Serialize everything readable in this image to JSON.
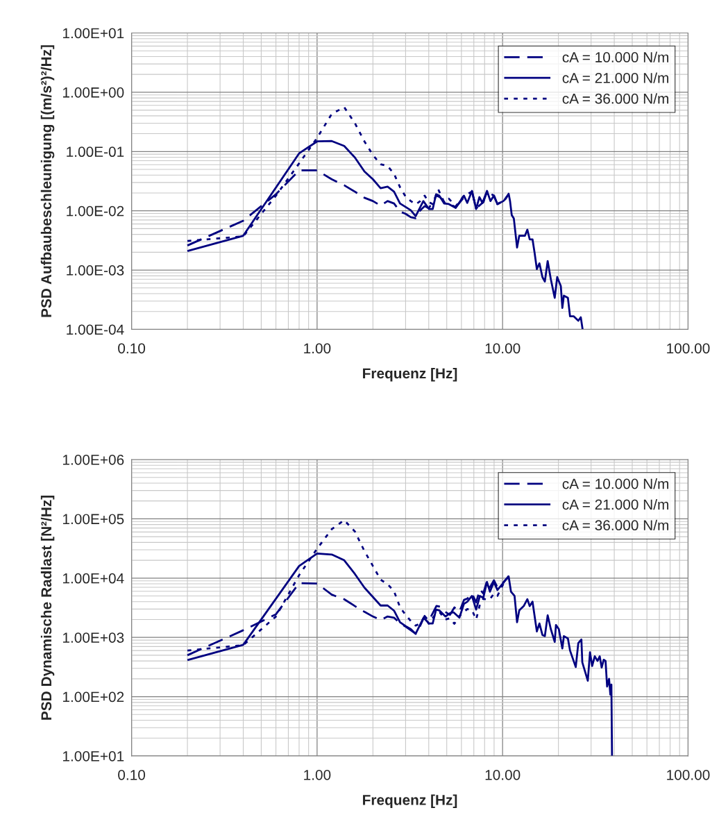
{
  "chart_data": [
    {
      "type": "line",
      "xlabel": "Frequenz [Hz]",
      "ylabel": "PSD Aufbaubeschleunigung [(m/s²)²/Hz]",
      "log": "xy",
      "grid": true,
      "legend": "top right",
      "xlim": [
        0.1,
        100
      ],
      "xticks": [
        {
          "value": 0.1,
          "label": "0.10"
        },
        {
          "value": 1,
          "label": "1.00"
        },
        {
          "value": 10,
          "label": "10.00"
        },
        {
          "value": 100,
          "label": "100.00"
        }
      ],
      "ylim": [
        0.0001,
        10
      ],
      "yticks": [
        {
          "value": 0.0001,
          "label": "1.00E-04"
        },
        {
          "value": 0.001,
          "label": "1.00E-03"
        },
        {
          "value": 0.01,
          "label": "1.00E-02"
        },
        {
          "value": 0.1,
          "label": "1.00E-01"
        },
        {
          "value": 1,
          "label": "1.00E+00"
        },
        {
          "value": 10,
          "label": "1.00E+01"
        }
      ],
      "series": [
        {
          "name": "cA = 10.000 N/m",
          "color": "#000080",
          "line_style": "dashed",
          "x": [
            0.2,
            0.4,
            0.6,
            0.8,
            1.0,
            1.2,
            1.4,
            1.6,
            1.8,
            2.0,
            2.2,
            2.4,
            2.6,
            2.8,
            3.0,
            3.2,
            3.4,
            3.6,
            3.8,
            4.0,
            4.4,
            4.6,
            4.9,
            5.2,
            5.6,
            6.2,
            6.84,
            7.2,
            7.87,
            8.24,
            8.98,
            9.38,
            10.1,
            10.78
          ],
          "values": [
            0.0026,
            0.0068,
            0.019,
            0.048,
            0.048,
            0.034,
            0.027,
            0.021,
            0.0166,
            0.0146,
            0.0122,
            0.0146,
            0.0133,
            0.0097,
            0.0089,
            0.0078,
            0.0075,
            0.0102,
            0.012,
            0.011,
            0.018,
            0.017,
            0.0135,
            0.013,
            0.0115,
            0.017,
            0.021,
            0.011,
            0.014,
            0.021,
            0.018,
            0.013,
            0.0146,
            0.019
          ]
        },
        {
          "name": "cA = 21.000 N/m",
          "color": "#000080",
          "line_style": "solid",
          "x": [
            0.2,
            0.4,
            0.8,
            1.0,
            1.2,
            1.4,
            1.6,
            1.8,
            2.0,
            2.2,
            2.4,
            2.6,
            2.8,
            3.0,
            3.2,
            3.4,
            3.74,
            4.01,
            4.2,
            4.38,
            4.56,
            4.84,
            5.13,
            5.59,
            6.19,
            6.45,
            6.84,
            7.2,
            7.5,
            7.79,
            8.24,
            8.6,
            8.98,
            9.38,
            10.1,
            10.4,
            10.78,
            10.97,
            11.2,
            11.5,
            11.97,
            12.3,
            13.2,
            13.6,
            14.0,
            14.5,
            14.9,
            15.3,
            15.8,
            16.4,
            16.9,
            17.5,
            18.2,
            19.1,
            19.7,
            20.6,
            21.0,
            21.4,
            22.5,
            23.1,
            24.2,
            25.6,
            26.4,
            27.0
          ],
          "values": [
            0.0021,
            0.0038,
            0.093,
            0.148,
            0.15,
            0.124,
            0.079,
            0.046,
            0.034,
            0.024,
            0.0255,
            0.021,
            0.0133,
            0.0116,
            0.0102,
            0.0081,
            0.0146,
            0.0107,
            0.0107,
            0.019,
            0.018,
            0.0133,
            0.013,
            0.0112,
            0.018,
            0.0136,
            0.0217,
            0.0107,
            0.017,
            0.0136,
            0.0217,
            0.0146,
            0.018,
            0.013,
            0.0146,
            0.016,
            0.0194,
            0.0146,
            0.0085,
            0.0074,
            0.0024,
            0.0038,
            0.0038,
            0.0048,
            0.0033,
            0.0033,
            0.0019,
            0.00104,
            0.0013,
            0.00076,
            0.00064,
            0.00142,
            0.0007,
            0.00034,
            0.00076,
            0.00054,
            0.00023,
            0.00037,
            0.00034,
            0.000166,
            0.000166,
            0.00014,
            0.00016,
            0.0001
          ]
        },
        {
          "name": "cA = 36.000 N/m",
          "color": "#000080",
          "line_style": "dotted",
          "x": [
            0.2,
            0.4,
            0.6,
            0.8,
            1.0,
            1.2,
            1.4,
            1.6,
            1.8,
            2.0,
            2.2,
            2.4,
            2.6,
            2.8,
            3.0,
            3.2,
            3.4,
            3.6,
            3.8,
            4.0,
            4.2,
            4.5,
            4.84,
            5.13,
            5.6,
            6.19,
            6.84,
            7.2,
            7.87,
            8.24,
            8.98,
            9.38,
            10.1,
            10.78
          ],
          "values": [
            0.0031,
            0.0037,
            0.018,
            0.063,
            0.17,
            0.43,
            0.56,
            0.3,
            0.148,
            0.087,
            0.061,
            0.057,
            0.042,
            0.025,
            0.0174,
            0.0146,
            0.0128,
            0.0146,
            0.018,
            0.014,
            0.013,
            0.023,
            0.014,
            0.016,
            0.012,
            0.018,
            0.021,
            0.011,
            0.014,
            0.021,
            0.018,
            0.013,
            0.0146,
            0.019
          ]
        }
      ]
    },
    {
      "type": "line",
      "xlabel": "Frequenz [Hz]",
      "ylabel": "PSD Dynamische Radlast [N²/Hz]",
      "log": "xy",
      "grid": true,
      "legend": "top right",
      "xlim": [
        0.1,
        100
      ],
      "xticks": [
        {
          "value": 0.1,
          "label": "0.10"
        },
        {
          "value": 1,
          "label": "1.00"
        },
        {
          "value": 10,
          "label": "10.00"
        },
        {
          "value": 100,
          "label": "100.00"
        }
      ],
      "ylim": [
        10,
        1000000
      ],
      "yticks": [
        {
          "value": 10,
          "label": "1.00E+01"
        },
        {
          "value": 100,
          "label": "1.00E+02"
        },
        {
          "value": 1000,
          "label": "1.00E+03"
        },
        {
          "value": 10000,
          "label": "1.00E+04"
        },
        {
          "value": 100000,
          "label": "1.00E+05"
        },
        {
          "value": 1000000,
          "label": "1.00E+06"
        }
      ],
      "series": [
        {
          "name": "cA = 10.000 N/m",
          "color": "#000080",
          "line_style": "dashed",
          "x": [
            0.2,
            0.4,
            0.6,
            0.8,
            1.0,
            1.2,
            1.4,
            1.6,
            1.8,
            2.0,
            2.2,
            2.4,
            2.6,
            2.8,
            3.0,
            3.2,
            3.4,
            3.6,
            3.8,
            4.0,
            4.4,
            4.6,
            4.9,
            5.2,
            5.5,
            5.85,
            6.2,
            6.45,
            6.84,
            7.2,
            7.55,
            7.87,
            8.24,
            8.55,
            8.98,
            9.38,
            10.1,
            10.78
          ],
          "values": [
            500,
            1320,
            2450,
            8200,
            8100,
            5260,
            4400,
            3370,
            2700,
            2250,
            1960,
            2250,
            2150,
            1730,
            1520,
            1320,
            1150,
            1580,
            2300,
            1900,
            3400,
            3300,
            2700,
            2400,
            3200,
            2700,
            4300,
            4500,
            5500,
            3900,
            6500,
            5500,
            9000,
            7000,
            9200,
            7000,
            8500,
            10700
          ]
        },
        {
          "name": "cA = 21.000 N/m",
          "color": "#000080",
          "line_style": "solid",
          "x": [
            0.2,
            0.4,
            0.8,
            1.0,
            1.2,
            1.4,
            1.6,
            1.8,
            2.0,
            2.2,
            2.4,
            2.6,
            2.8,
            3.0,
            3.2,
            3.4,
            3.75,
            4.01,
            4.2,
            4.38,
            4.56,
            4.92,
            5.2,
            5.44,
            5.85,
            6.19,
            6.45,
            6.84,
            7.2,
            7.55,
            7.87,
            8.24,
            8.55,
            8.98,
            9.38,
            10.1,
            10.4,
            10.78,
            11.1,
            11.6,
            11.97,
            12.3,
            13.0,
            13.6,
            14.0,
            14.5,
            15.3,
            15.8,
            16.4,
            16.9,
            17.5,
            18.2,
            19.1,
            19.4,
            20.1,
            21.0,
            21.4,
            22.5,
            23.1,
            24.8,
            25.6,
            26.6,
            26.9,
            28.8,
            29.6,
            30.4,
            31.4,
            32.5,
            33.4,
            34.2,
            35.1,
            35.9,
            36.6,
            37.5,
            38.1,
            38.6,
            38.9
          ],
          "values": [
            413,
            750,
            16000,
            26000,
            25000,
            20000,
            11700,
            6900,
            4800,
            3450,
            3450,
            2820,
            1800,
            1550,
            1380,
            1150,
            2150,
            1720,
            1720,
            2940,
            2850,
            2250,
            2550,
            2650,
            2150,
            3680,
            3990,
            5000,
            2940,
            5000,
            4650,
            8590,
            5900,
            8600,
            6300,
            8300,
            9400,
            10700,
            5900,
            5000,
            1800,
            2850,
            3370,
            4400,
            3370,
            4000,
            1260,
            1720,
            1100,
            1050,
            2360,
            1380,
            840,
            1620,
            1380,
            650,
            1050,
            960,
            600,
            316,
            800,
            920,
            380,
            186,
            560,
            330,
            480,
            400,
            480,
            310,
            420,
            400,
            148,
            200,
            108,
            160,
            10
          ]
        },
        {
          "name": "cA = 36.000 N/m",
          "color": "#000080",
          "line_style": "dotted",
          "x": [
            0.2,
            0.4,
            0.6,
            0.8,
            1.0,
            1.2,
            1.4,
            1.6,
            1.8,
            2.0,
            2.2,
            2.4,
            2.6,
            2.8,
            3.0,
            3.2,
            3.4,
            3.6,
            3.8,
            4.0,
            4.4,
            4.6,
            4.9,
            5.2,
            5.5,
            5.85,
            6.2,
            6.45,
            6.84,
            7.2,
            7.55,
            7.87,
            8.24,
            8.55,
            8.98,
            9.38,
            10.1,
            10.78
          ],
          "values": [
            600,
            740,
            2250,
            11200,
            31300,
            67000,
            95000,
            61000,
            28600,
            16000,
            9400,
            7900,
            6000,
            3220,
            2400,
            1890,
            1580,
            1730,
            2240,
            1700,
            2600,
            2600,
            2000,
            2100,
            1700,
            2300,
            2700,
            3000,
            2900,
            2000,
            3600,
            4500,
            4300,
            4400,
            5500,
            5000,
            8000,
            10700
          ]
        }
      ]
    }
  ]
}
